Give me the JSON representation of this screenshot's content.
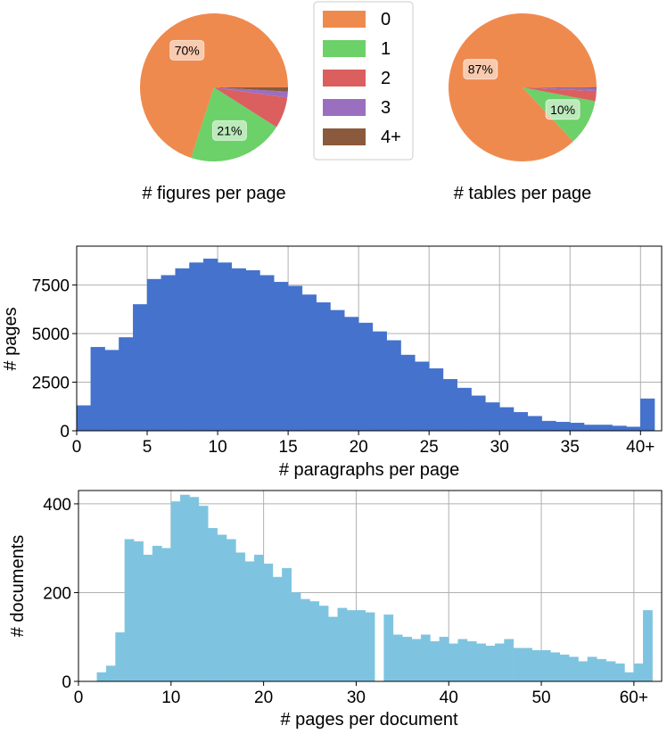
{
  "colors": {
    "c0": "#ef8a4f",
    "c1": "#6cd168",
    "c2": "#db5f5f",
    "c3": "#9b6fc0",
    "c4": "#8b5a3c",
    "hist_paragraphs": "#4472cc",
    "hist_pages": "#7ec4e0",
    "grid": "#b0b0b0"
  },
  "chart_data": [
    {
      "type": "pie",
      "xlabel": "# figures per page",
      "slices": [
        {
          "label": "0",
          "value": 70,
          "pct_label": "70%"
        },
        {
          "label": "1",
          "value": 21,
          "pct_label": "21%"
        },
        {
          "label": "2",
          "value": 6.8,
          "pct_label": ""
        },
        {
          "label": "3",
          "value": 1.3,
          "pct_label": ""
        },
        {
          "label": "4+",
          "value": 0.9,
          "pct_label": ""
        }
      ]
    },
    {
      "type": "pie",
      "xlabel": "# tables per page",
      "slices": [
        {
          "label": "0",
          "value": 87,
          "pct_label": "87%"
        },
        {
          "label": "1",
          "value": 10,
          "pct_label": "10%"
        },
        {
          "label": "2",
          "value": 2.2,
          "pct_label": ""
        },
        {
          "label": "3",
          "value": 0.6,
          "pct_label": ""
        },
        {
          "label": "4+",
          "value": 0.2,
          "pct_label": ""
        }
      ]
    },
    {
      "type": "legend",
      "entries": [
        "0",
        "1",
        "2",
        "3",
        "4+"
      ]
    },
    {
      "type": "bar",
      "xlabel": "# paragraphs per page",
      "ylabel": "# pages",
      "xlim": [
        0,
        41.5
      ],
      "ylim": [
        0,
        9500
      ],
      "xticks": [
        0,
        5,
        10,
        15,
        20,
        25,
        30,
        35,
        40
      ],
      "xtick_labels": [
        "0",
        "5",
        "10",
        "15",
        "20",
        "25",
        "30",
        "35",
        "40+"
      ],
      "yticks": [
        0,
        2500,
        5000,
        7500
      ],
      "bin_width": 1,
      "x_start": 0,
      "values": [
        1300,
        4300,
        4150,
        4800,
        6500,
        7800,
        8000,
        8350,
        8650,
        8850,
        8650,
        8350,
        8250,
        8000,
        7650,
        7450,
        7000,
        6600,
        6200,
        5850,
        5550,
        5100,
        4650,
        3900,
        3550,
        3200,
        2650,
        2200,
        1800,
        1450,
        1200,
        950,
        750,
        500,
        450,
        400,
        300,
        300,
        250,
        200,
        1650
      ],
      "grid": true
    },
    {
      "type": "bar",
      "xlabel": "# pages per document",
      "ylabel": "# documents",
      "xlim": [
        0,
        63
      ],
      "ylim": [
        0,
        430
      ],
      "xticks": [
        0,
        10,
        20,
        30,
        40,
        50,
        60
      ],
      "xtick_labels": [
        "0",
        "10",
        "20",
        "30",
        "40",
        "50",
        "60+"
      ],
      "yticks": [
        0,
        200,
        400
      ],
      "bin_width": 1,
      "x_start": 2,
      "values": [
        20,
        35,
        110,
        320,
        315,
        285,
        305,
        300,
        405,
        420,
        415,
        395,
        345,
        330,
        320,
        290,
        270,
        285,
        265,
        235,
        255,
        200,
        185,
        180,
        170,
        145,
        165,
        160,
        160,
        155,
        0,
        150,
        105,
        100,
        95,
        105,
        90,
        100,
        85,
        95,
        90,
        85,
        80,
        85,
        95,
        75,
        75,
        70,
        70,
        65,
        60,
        55,
        45,
        55,
        50,
        45,
        40,
        20,
        40,
        160
      ],
      "grid": true
    }
  ]
}
